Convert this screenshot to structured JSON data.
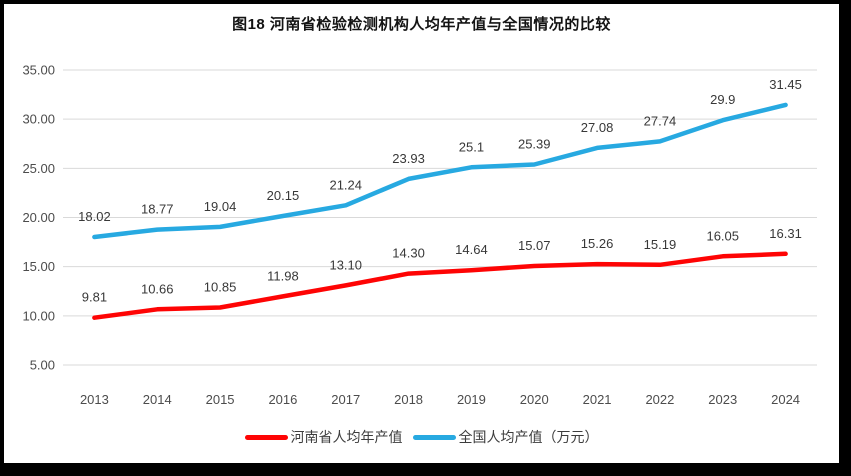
{
  "chart_data": {
    "type": "line",
    "title": "图18  河南省检验检测机构人均年产值与全国情况的比较",
    "categories": [
      "2013",
      "2014",
      "2015",
      "2016",
      "2017",
      "2018",
      "2019",
      "2020",
      "2021",
      "2022",
      "2023",
      "2024"
    ],
    "series": [
      {
        "name": "河南省人均年产值",
        "color": "#FE0404",
        "values": [
          9.81,
          10.66,
          10.85,
          11.98,
          13.1,
          14.3,
          14.64,
          15.07,
          15.26,
          15.19,
          16.05,
          16.31
        ],
        "labels": [
          "9.81",
          "10.66",
          "10.85",
          "11.98",
          "13.10",
          "14.30",
          "14.64",
          "15.07",
          "15.26",
          "15.19",
          "16.05",
          "16.31"
        ]
      },
      {
        "name": "全国人均产值（万元）",
        "color": "#27A9E1",
        "values": [
          18.02,
          18.77,
          19.04,
          20.15,
          21.24,
          23.93,
          25.1,
          25.39,
          27.08,
          27.74,
          29.9,
          31.45
        ],
        "labels": [
          "18.02",
          "18.77",
          "19.04",
          "20.15",
          "21.24",
          "23.93",
          "25.1",
          "25.39",
          "27.08",
          "27.74",
          "29.9",
          "31.45"
        ]
      }
    ],
    "y_ticks": [
      {
        "value": 35,
        "label": "35.00"
      },
      {
        "value": 30,
        "label": "30.00"
      },
      {
        "value": 25,
        "label": "25.00"
      },
      {
        "value": 20,
        "label": "20.00"
      },
      {
        "value": 15,
        "label": "15.00"
      },
      {
        "value": 10,
        "label": "10.00"
      },
      {
        "value": 5,
        "label": "5.00"
      }
    ],
    "ylim": [
      5,
      35
    ],
    "grid": true,
    "grid_color": "#D9D9D9",
    "legend_position": "bottom"
  }
}
